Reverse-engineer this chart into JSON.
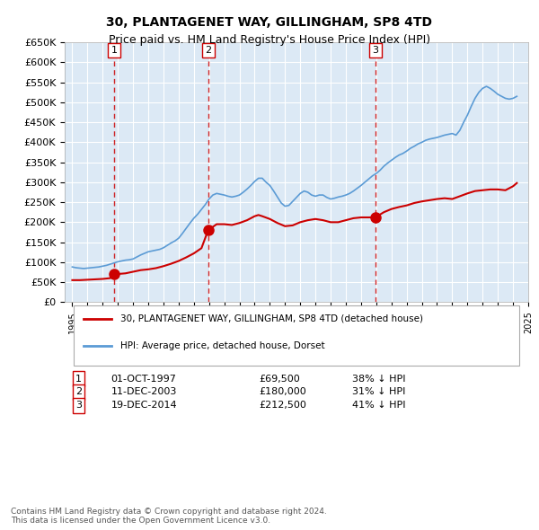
{
  "title": "30, PLANTAGENET WAY, GILLINGHAM, SP8 4TD",
  "subtitle": "Price paid vs. HM Land Registry's House Price Index (HPI)",
  "ylabel": "",
  "background_color": "#dce9f5",
  "plot_bg_color": "#dce9f5",
  "grid_color": "#ffffff",
  "ylim": [
    0,
    650000
  ],
  "yticks": [
    0,
    50000,
    100000,
    150000,
    200000,
    250000,
    300000,
    350000,
    400000,
    450000,
    500000,
    550000,
    600000,
    650000
  ],
  "ytick_labels": [
    "£0",
    "£50K",
    "£100K",
    "£150K",
    "£200K",
    "£250K",
    "£300K",
    "£350K",
    "£400K",
    "£450K",
    "£500K",
    "£550K",
    "£600K",
    "£650K"
  ],
  "sales": [
    {
      "date_num": 1997.75,
      "price": 69500,
      "label": "1",
      "date_str": "01-OCT-1997",
      "price_str": "£69,500",
      "hpi_diff": "38% ↓ HPI"
    },
    {
      "date_num": 2003.94,
      "price": 180000,
      "label": "2",
      "date_str": "11-DEC-2003",
      "price_str": "£180,000",
      "hpi_diff": "31% ↓ HPI"
    },
    {
      "date_num": 2014.96,
      "price": 212500,
      "label": "3",
      "date_str": "19-DEC-2014",
      "price_str": "£212,500",
      "hpi_diff": "41% ↓ HPI"
    }
  ],
  "legend_property_label": "30, PLANTAGENET WAY, GILLINGHAM, SP8 4TD (detached house)",
  "legend_hpi_label": "HPI: Average price, detached house, Dorset",
  "property_line_color": "#cc0000",
  "hpi_line_color": "#5b9bd5",
  "sale_marker_color": "#cc0000",
  "vline_color": "#cc0000",
  "footer_text": "Contains HM Land Registry data © Crown copyright and database right 2024.\nThis data is licensed under the Open Government Licence v3.0.",
  "hpi_data": {
    "years": [
      1995.0,
      1995.25,
      1995.5,
      1995.75,
      1996.0,
      1996.25,
      1996.5,
      1996.75,
      1997.0,
      1997.25,
      1997.5,
      1997.75,
      1998.0,
      1998.25,
      1998.5,
      1998.75,
      1999.0,
      1999.25,
      1999.5,
      1999.75,
      2000.0,
      2000.25,
      2000.5,
      2000.75,
      2001.0,
      2001.25,
      2001.5,
      2001.75,
      2002.0,
      2002.25,
      2002.5,
      2002.75,
      2003.0,
      2003.25,
      2003.5,
      2003.75,
      2004.0,
      2004.25,
      2004.5,
      2004.75,
      2005.0,
      2005.25,
      2005.5,
      2005.75,
      2006.0,
      2006.25,
      2006.5,
      2006.75,
      2007.0,
      2007.25,
      2007.5,
      2007.75,
      2008.0,
      2008.25,
      2008.5,
      2008.75,
      2009.0,
      2009.25,
      2009.5,
      2009.75,
      2010.0,
      2010.25,
      2010.5,
      2010.75,
      2011.0,
      2011.25,
      2011.5,
      2011.75,
      2012.0,
      2012.25,
      2012.5,
      2012.75,
      2013.0,
      2013.25,
      2013.5,
      2013.75,
      2014.0,
      2014.25,
      2014.5,
      2014.75,
      2015.0,
      2015.25,
      2015.5,
      2015.75,
      2016.0,
      2016.25,
      2016.5,
      2016.75,
      2017.0,
      2017.25,
      2017.5,
      2017.75,
      2018.0,
      2018.25,
      2018.5,
      2018.75,
      2019.0,
      2019.25,
      2019.5,
      2019.75,
      2020.0,
      2020.25,
      2020.5,
      2020.75,
      2021.0,
      2021.25,
      2021.5,
      2021.75,
      2022.0,
      2022.25,
      2022.5,
      2022.75,
      2023.0,
      2023.25,
      2023.5,
      2023.75,
      2024.0,
      2024.25
    ],
    "values": [
      88000,
      86000,
      85000,
      84000,
      85000,
      86000,
      87000,
      88000,
      90000,
      92000,
      95000,
      98000,
      101000,
      103000,
      105000,
      106000,
      108000,
      113000,
      118000,
      122000,
      126000,
      128000,
      130000,
      132000,
      136000,
      142000,
      148000,
      153000,
      160000,
      172000,
      185000,
      198000,
      210000,
      220000,
      232000,
      244000,
      258000,
      268000,
      272000,
      270000,
      268000,
      265000,
      263000,
      265000,
      268000,
      275000,
      283000,
      292000,
      302000,
      310000,
      310000,
      300000,
      292000,
      278000,
      263000,
      248000,
      240000,
      242000,
      252000,
      262000,
      272000,
      278000,
      275000,
      268000,
      265000,
      268000,
      268000,
      262000,
      258000,
      260000,
      263000,
      265000,
      268000,
      272000,
      278000,
      285000,
      292000,
      300000,
      308000,
      316000,
      322000,
      330000,
      340000,
      348000,
      355000,
      362000,
      368000,
      372000,
      378000,
      385000,
      390000,
      396000,
      400000,
      405000,
      408000,
      410000,
      412000,
      415000,
      418000,
      420000,
      422000,
      418000,
      430000,
      450000,
      468000,
      490000,
      510000,
      525000,
      535000,
      540000,
      535000,
      528000,
      520000,
      515000,
      510000,
      508000,
      510000,
      515000
    ]
  },
  "property_data": {
    "years": [
      1995.0,
      1995.5,
      1996.0,
      1996.5,
      1997.0,
      1997.5,
      1997.75,
      1998.5,
      1999.5,
      2000.0,
      2000.5,
      2001.0,
      2001.5,
      2002.0,
      2002.5,
      2003.0,
      2003.5,
      2003.94,
      2004.5,
      2005.0,
      2005.5,
      2006.0,
      2006.5,
      2007.0,
      2007.25,
      2007.5,
      2008.0,
      2008.5,
      2009.0,
      2009.5,
      2010.0,
      2010.5,
      2011.0,
      2011.5,
      2012.0,
      2012.5,
      2013.0,
      2013.5,
      2014.0,
      2014.5,
      2014.96,
      2015.5,
      2016.0,
      2016.5,
      2017.0,
      2017.5,
      2018.0,
      2018.5,
      2019.0,
      2019.5,
      2020.0,
      2020.5,
      2021.0,
      2021.5,
      2022.0,
      2022.5,
      2023.0,
      2023.5,
      2024.0,
      2024.25
    ],
    "values": [
      55000,
      55000,
      56000,
      57000,
      58000,
      60000,
      69500,
      72000,
      80000,
      82000,
      85000,
      90000,
      96000,
      103000,
      112000,
      122000,
      135000,
      180000,
      195000,
      195000,
      193000,
      198000,
      205000,
      215000,
      218000,
      215000,
      208000,
      198000,
      190000,
      192000,
      200000,
      205000,
      208000,
      205000,
      200000,
      200000,
      205000,
      210000,
      212000,
      212000,
      212500,
      225000,
      233000,
      238000,
      242000,
      248000,
      252000,
      255000,
      258000,
      260000,
      258000,
      265000,
      272000,
      278000,
      280000,
      282000,
      282000,
      280000,
      290000,
      298000
    ]
  }
}
